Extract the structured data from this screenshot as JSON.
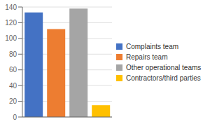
{
  "chart_data": {
    "type": "bar",
    "categories": [
      "Complaints team",
      "Repairs team",
      "Other operational teams",
      "Contractors/third parties"
    ],
    "values": [
      133,
      112,
      138,
      15
    ],
    "colors": [
      "#4472c4",
      "#ed7d31",
      "#a5a5a5",
      "#ffc000"
    ],
    "ylim": [
      0,
      140
    ],
    "yticks": [
      0,
      20,
      40,
      60,
      80,
      100,
      120,
      140
    ],
    "grid": true,
    "legend": "right",
    "tick_labels": "y"
  }
}
